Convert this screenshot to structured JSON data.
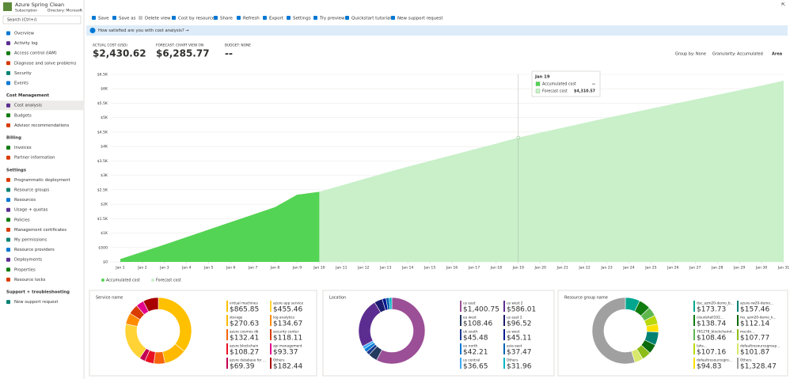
{
  "header": {
    "title": "Azure Spring Clean",
    "subtitle": "Subscription",
    "directory": "Directory: Microsoft"
  },
  "search": "Search (Ctrl+/)",
  "nav": [
    {
      "items": [
        "Overview",
        "Activity log",
        "Access control (IAM)",
        "Diagnose and solve problems",
        "Security",
        "Events"
      ]
    },
    {
      "heading": "Cost Management",
      "items": [
        "Cost analysis",
        "Budgets",
        "Advisor recommendations"
      ]
    },
    {
      "heading": "Billing",
      "items": [
        "Invoices",
        "Partner information"
      ]
    },
    {
      "heading": "Settings",
      "items": [
        "Programmatic deployment",
        "Resource groups",
        "Resources",
        "Usage + quotas",
        "Policies",
        "Management certificates",
        "My permissions",
        "Resource providers",
        "Deployments",
        "Properties",
        "Resource locks"
      ]
    },
    {
      "heading": "Support + troubleshooting",
      "items": [
        "New support request"
      ]
    }
  ],
  "toolbar": [
    "Save",
    "Save as",
    "Delete view",
    "Cost by resource",
    "Share",
    "Refresh",
    "Export",
    "Settings",
    "Try preview",
    "Quickstart tutorial",
    "New support request"
  ],
  "banner": "How satisfied are you with cost analysis? →",
  "kpis": [
    {
      "label": "ACTUAL COST (USD)",
      "value": "$2,430.62"
    },
    {
      "label": "FORECAST: CHART VIEW ON",
      "value": "$6,285.77"
    },
    {
      "label": "BUDGET: NONE",
      "value": "--"
    }
  ],
  "controls": {
    "group_by": "Group by: None",
    "granularity": "Granularity: Accumulated",
    "view": "Area"
  },
  "chart_data": [
    {
      "type": "area",
      "categories": [
        "Jan 1",
        "Jan 2",
        "Jan 3",
        "Jan 4",
        "Jan 5",
        "Jan 6",
        "Jan 7",
        "Jan 8",
        "Jan 9",
        "Jan 10",
        "Jan 11",
        "Jan 12",
        "Jan 13",
        "Jan 14",
        "Jan 15",
        "Jan 16",
        "Jan 17",
        "Jan 18",
        "Jan 19",
        "Jan 20",
        "Jan 21",
        "Jan 22",
        "Jan 23",
        "Jan 24",
        "Jan 25",
        "Jan 26",
        "Jan 27",
        "Jan 28",
        "Jan 29",
        "Jan 30",
        "Jan 31"
      ],
      "series": [
        {
          "name": "Accumulated cost",
          "color": "#54d454",
          "values": [
            100,
            350,
            600,
            860,
            1120,
            1380,
            1640,
            1900,
            2330,
            2430,
            null,
            null,
            null,
            null,
            null,
            null,
            null,
            null,
            null,
            null,
            null,
            null,
            null,
            null,
            null,
            null,
            null,
            null,
            null,
            null,
            null
          ]
        },
        {
          "name": "Forecast cost",
          "color": "#c9f0c9",
          "values": [
            null,
            null,
            null,
            null,
            null,
            null,
            null,
            null,
            null,
            2430,
            2650,
            2870,
            3090,
            3300,
            3500,
            3700,
            3900,
            4100,
            4310,
            4480,
            4650,
            4820,
            4990,
            5150,
            5310,
            5470,
            5630,
            5790,
            5950,
            6110,
            6285
          ]
        }
      ],
      "ylim": [
        0,
        6500
      ],
      "yticks": [
        {
          "value": 0,
          "label": "$0"
        },
        {
          "value": 500,
          "label": "$500"
        },
        {
          "value": 1000,
          "label": "$1K"
        },
        {
          "value": 1500,
          "label": "$1.5K"
        },
        {
          "value": 2000,
          "label": "$2K"
        },
        {
          "value": 2500,
          "label": "$2.5K"
        },
        {
          "value": 3000,
          "label": "$3K"
        },
        {
          "value": 3500,
          "label": "$3.5K"
        },
        {
          "value": 4000,
          "label": "$4K"
        },
        {
          "value": 4500,
          "label": "$4.5K"
        },
        {
          "value": 5000,
          "label": "$5K"
        },
        {
          "value": 5500,
          "label": "$5.5K"
        },
        {
          "value": 6000,
          "label": "$6K"
        },
        {
          "value": 6500,
          "label": "$6.5K"
        }
      ],
      "grid": true,
      "tooltip": {
        "title": "Jan 19",
        "rows": [
          {
            "name": "Accumulated cost",
            "value": "--"
          },
          {
            "name": "Forecast cost",
            "value": "$4,310.57"
          }
        ]
      }
    },
    {
      "type": "donut",
      "title": "Service name",
      "categories": [
        "virtual machines",
        "storage",
        "azure cosmos db",
        "azure blockchain",
        "azure database for ...",
        "azure app service",
        "log analytics",
        "security center",
        "api management",
        "Others"
      ],
      "values": [
        865.85,
        270.63,
        132.41,
        108.27,
        69.39,
        455.46,
        134.67,
        118.11,
        93.37,
        182.44
      ],
      "value_labels": [
        "$865.85",
        "$270.63",
        "$132.41",
        "$108.27",
        "$69.39",
        "$455.46",
        "$134.67",
        "$118.11",
        "$93.37",
        "$182.44"
      ],
      "colors": [
        "#ffc000",
        "#ffb900",
        "#f7630c",
        "#e81123",
        "#c30052",
        "#ffd335",
        "#ff8c00",
        "#da3b01",
        "#e3008c",
        "#a80000"
      ]
    },
    {
      "type": "donut",
      "title": "Location",
      "categories": [
        "us east",
        "eu west",
        "uk south",
        "eu north",
        "us central",
        "us west 2",
        "us east 2",
        "us west",
        "asia east",
        "Others"
      ],
      "values": [
        1400.75,
        108.46,
        45.48,
        42.21,
        36.65,
        586.01,
        96.52,
        45.11,
        37.47,
        31.96
      ],
      "value_labels": [
        "$1,400.75",
        "$108.46",
        "$45.48",
        "$42.21",
        "$36.65",
        "$586.01",
        "$96.52",
        "$45.11",
        "$37.47",
        "$31.96"
      ],
      "colors": [
        "#9b4f96",
        "#243a5e",
        "#1a3a8f",
        "#0078d4",
        "#3fa9f5",
        "#5c2d91",
        "#1b1b6f",
        "#00188f",
        "#0063b1",
        "#00b7c3"
      ]
    },
    {
      "type": "donut",
      "title": "Resource group name",
      "categories": [
        "dsc_azm20-demo_b...",
        "cloudshell102...",
        "761278_blockchaind...",
        "lahs...",
        "defaultresourcegro...",
        "azure-rw20-demo...",
        "ms_azm20-demo_k...",
        "mscdn...",
        "defaultresourcegroup...",
        "Others"
      ],
      "values": [
        173.73,
        138.74,
        108.46,
        107.16,
        94.83,
        157.46,
        112.14,
        107.77,
        101.87,
        1328.47
      ],
      "value_labels": [
        "$173.73",
        "$138.74",
        "$108.46",
        "$107.16",
        "$94.83",
        "$157.46",
        "$112.14",
        "$107.77",
        "$101.87",
        "$1,328.47"
      ],
      "colors": [
        "#00a78e",
        "#107c10",
        "#5fb84e",
        "#bad80a",
        "#fce100",
        "#008272",
        "#0b6a0b",
        "#8cbd18",
        "#d9e86a",
        "#a0a0a0"
      ]
    }
  ]
}
